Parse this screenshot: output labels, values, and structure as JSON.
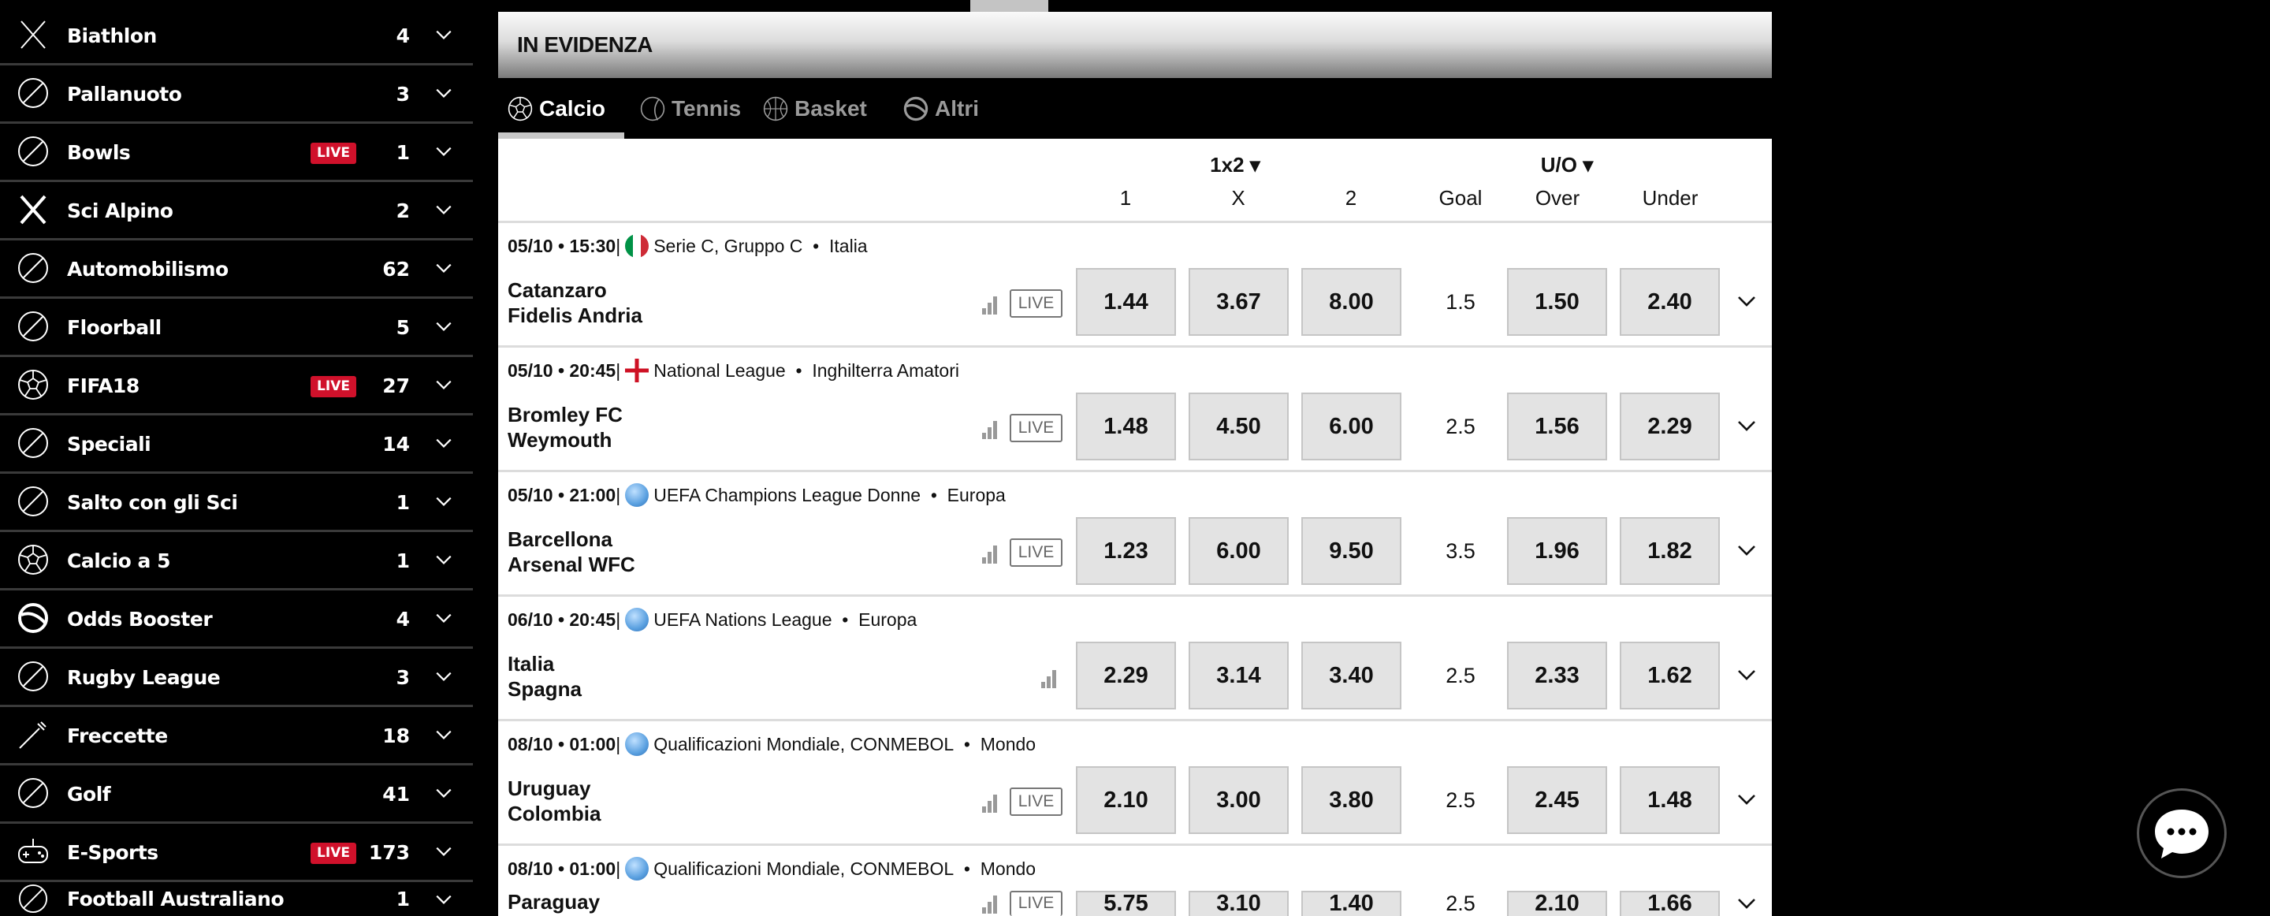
{
  "sidebar": {
    "live_label": "LIVE",
    "items": [
      {
        "label": "Biathlon",
        "count": "4",
        "live": false,
        "icon": "biathlon-icon"
      },
      {
        "label": "Pallanuoto",
        "count": "3",
        "live": false,
        "icon": "water-polo-icon"
      },
      {
        "label": "Bowls",
        "count": "1",
        "live": true,
        "icon": "bowls-icon"
      },
      {
        "label": "Sci Alpino",
        "count": "2",
        "live": false,
        "icon": "alpine-ski-icon"
      },
      {
        "label": "Automobilismo",
        "count": "62",
        "live": false,
        "icon": "helmet-icon"
      },
      {
        "label": "Floorball",
        "count": "5",
        "live": false,
        "icon": "floorball-icon"
      },
      {
        "label": "FIFA18",
        "count": "27",
        "live": true,
        "icon": "soccer-ball-icon"
      },
      {
        "label": "Speciali",
        "count": "14",
        "live": false,
        "icon": "award-icon"
      },
      {
        "label": "Salto con gli Sci",
        "count": "1",
        "live": false,
        "icon": "ski-jump-icon"
      },
      {
        "label": "Calcio a 5",
        "count": "1",
        "live": false,
        "icon": "soccer-ball-icon"
      },
      {
        "label": "Odds Booster",
        "count": "4",
        "live": false,
        "icon": "odds-booster-icon"
      },
      {
        "label": "Rugby League",
        "count": "3",
        "live": false,
        "icon": "rugby-ball-icon"
      },
      {
        "label": "Freccette",
        "count": "18",
        "live": false,
        "icon": "dart-icon"
      },
      {
        "label": "Golf",
        "count": "41",
        "live": false,
        "icon": "golf-ball-icon"
      },
      {
        "label": "E-Sports",
        "count": "173",
        "live": true,
        "icon": "gamepad-icon"
      },
      {
        "label": "Football Australiano",
        "count": "1",
        "live": false,
        "icon": "football-icon"
      }
    ]
  },
  "header": {
    "title": "IN EVIDENZA"
  },
  "tabs": [
    {
      "label": "Calcio",
      "icon": "soccer-ball-icon",
      "active": true
    },
    {
      "label": "Tennis",
      "icon": "tennis-ball-icon",
      "active": false
    },
    {
      "label": "Basket",
      "icon": "basketball-icon",
      "active": false
    },
    {
      "label": "Altri",
      "icon": "odds-booster-icon",
      "active": false
    }
  ],
  "columns": {
    "group_1x2": "1x2 ▾",
    "group_uo": "U/O ▾",
    "c1": "1",
    "cx": "X",
    "c2": "2",
    "goal": "Goal",
    "over": "Over",
    "under": "Under"
  },
  "colors": {
    "live_badge": "#d0112b",
    "odds_bg": "#e3e3e3",
    "flag_it": [
      "#009246",
      "#ffffff",
      "#ce2b37"
    ],
    "flag_en": "#ce1124",
    "globe": "#5aa0e0"
  },
  "matches": [
    {
      "date": "05/10",
      "time": "15:30",
      "flag": "italy",
      "league": "Serie C, Gruppo C",
      "region": "Italia",
      "home": "Catanzaro",
      "away": "Fidelis Andria",
      "live": true,
      "odds": [
        "1.44",
        "3.67",
        "8.00"
      ],
      "goal": "1.5",
      "over": "1.50",
      "under": "2.40"
    },
    {
      "date": "05/10",
      "time": "20:45",
      "flag": "england",
      "league": "National League",
      "region": "Inghilterra Amatori",
      "home": "Bromley FC",
      "away": "Weymouth",
      "live": true,
      "odds": [
        "1.48",
        "4.50",
        "6.00"
      ],
      "goal": "2.5",
      "over": "1.56",
      "under": "2.29"
    },
    {
      "date": "05/10",
      "time": "21:00",
      "flag": "world",
      "league": "UEFA Champions League Donne",
      "region": "Europa",
      "home": "Barcellona",
      "away": "Arsenal WFC",
      "live": true,
      "odds": [
        "1.23",
        "6.00",
        "9.50"
      ],
      "goal": "3.5",
      "over": "1.96",
      "under": "1.82"
    },
    {
      "date": "06/10",
      "time": "20:45",
      "flag": "world",
      "league": "UEFA Nations League",
      "region": "Europa",
      "home": "Italia",
      "away": "Spagna",
      "live": false,
      "odds": [
        "2.29",
        "3.14",
        "3.40"
      ],
      "goal": "2.5",
      "over": "2.33",
      "under": "1.62"
    },
    {
      "date": "08/10",
      "time": "01:00",
      "flag": "world",
      "league": "Qualificazioni Mondiale, CONMEBOL",
      "region": "Mondo",
      "home": "Uruguay",
      "away": "Colombia",
      "live": true,
      "odds": [
        "2.10",
        "3.00",
        "3.80"
      ],
      "goal": "2.5",
      "over": "2.45",
      "under": "1.48"
    },
    {
      "date": "08/10",
      "time": "01:00",
      "flag": "world",
      "league": "Qualificazioni Mondiale, CONMEBOL",
      "region": "Mondo",
      "home": "Paraguay",
      "away": "",
      "live": true,
      "odds": [
        "5.75",
        "3.10",
        "1.40"
      ],
      "goal": "2.5",
      "over": "2.10",
      "under": "1.66"
    }
  ],
  "live_label": "LIVE"
}
